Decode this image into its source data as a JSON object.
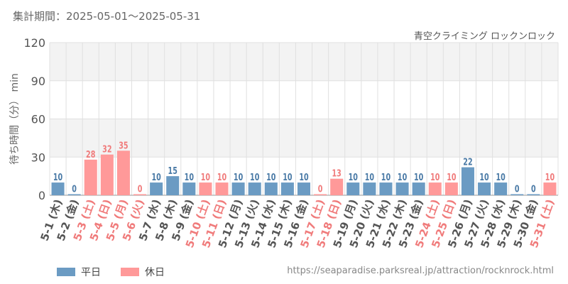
{
  "header": {
    "period": "集計期間：2025-05-01～2025-05-31",
    "attraction": "青空クライミング ロックンロック"
  },
  "legend": [
    {
      "label": "平日",
      "color": "#6b9bc3"
    },
    {
      "label": "休日",
      "color": "#ff9999"
    }
  ],
  "footer": {
    "url": "https://seaparadise.parksreal.jp/attraction/rocknrock.html"
  },
  "colors": {
    "weekday": "#6b9bc3",
    "holiday": "#ff9999",
    "weekday_label": "#4a7aa6",
    "holiday_label": "#f07b7b",
    "plot_band": "#f3f3f3",
    "grid": "#e0e0e0",
    "axis_text": "#555555"
  },
  "chart_data": {
    "type": "bar",
    "ylabel": "待ち時間（分） min",
    "ylim": [
      0,
      120
    ],
    "yticks": [
      0,
      30,
      60,
      90,
      120
    ],
    "categories": [
      "5-1 (木)",
      "5-2 (金)",
      "5-3 (土)",
      "5-4 (日)",
      "5-5 (月)",
      "5-6 (火)",
      "5-7 (水)",
      "5-8 (木)",
      "5-9 (金)",
      "5-10 (土)",
      "5-11 (日)",
      "5-12 (月)",
      "5-13 (火)",
      "5-14 (水)",
      "5-15 (木)",
      "5-16 (金)",
      "5-17 (土)",
      "5-18 (日)",
      "5-19 (月)",
      "5-20 (火)",
      "5-21 (水)",
      "5-22 (木)",
      "5-23 (金)",
      "5-24 (土)",
      "5-25 (日)",
      "5-26 (月)",
      "5-27 (火)",
      "5-28 (水)",
      "5-29 (木)",
      "5-30 (金)",
      "5-31 (土)"
    ],
    "values": [
      10,
      0,
      28,
      32,
      35,
      0,
      10,
      15,
      10,
      10,
      10,
      10,
      10,
      10,
      10,
      10,
      0,
      13,
      10,
      10,
      10,
      10,
      10,
      10,
      10,
      22,
      10,
      10,
      0,
      0,
      10
    ],
    "day_type": [
      "平日",
      "平日",
      "休日",
      "休日",
      "休日",
      "休日",
      "平日",
      "平日",
      "平日",
      "休日",
      "休日",
      "平日",
      "平日",
      "平日",
      "平日",
      "平日",
      "休日",
      "休日",
      "平日",
      "平日",
      "平日",
      "平日",
      "平日",
      "休日",
      "休日",
      "平日",
      "平日",
      "平日",
      "平日",
      "平日",
      "休日"
    ]
  }
}
